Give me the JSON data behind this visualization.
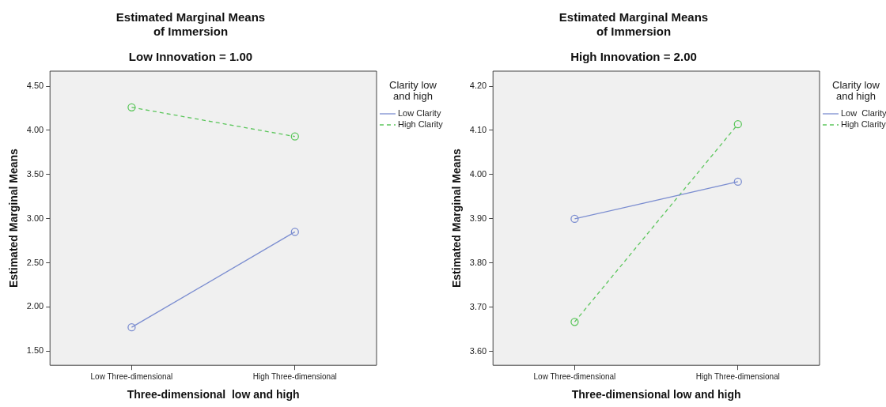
{
  "chart_data": [
    {
      "type": "line",
      "title": "Estimated Marginal Means of Immersion",
      "subtitle": "Low Innovation = 1.00",
      "xlabel": "Three-dimensional  low and high",
      "ylabel": "Estimated Marginal Means",
      "legend_title": "Clarity low and high",
      "categories": [
        "Low Three-dimensional",
        "High Three-dimensional"
      ],
      "series": [
        {
          "name": "Low Clarity",
          "color": "#7b8dd0",
          "values": [
            1.77,
            2.85
          ],
          "line_style": "solid"
        },
        {
          "name": "High Clarity",
          "color": "#5cc65c",
          "values": [
            4.26,
            3.93
          ],
          "line_style": "dashed"
        }
      ],
      "ylim": [
        1.34,
        4.67
      ],
      "yticks": [
        {
          "value": 1.5,
          "label": "1.50"
        },
        {
          "value": 2,
          "label": "2.00"
        },
        {
          "value": 2.5,
          "label": "2.50"
        },
        {
          "value": 3,
          "label": "3.00"
        },
        {
          "value": 3.5,
          "label": "3.50"
        },
        {
          "value": 4,
          "label": "4.00"
        },
        {
          "value": 4.5,
          "label": "4.50"
        }
      ],
      "grid": false,
      "legend": "top right",
      "marker": "circle"
    },
    {
      "type": "line",
      "title": "Estimated Marginal Means of Immersion",
      "subtitle": "High Innovation = 2.00",
      "xlabel": "Three-dimensional low and high",
      "ylabel": "Estimated Marginal Means",
      "legend_title": "Clarity low and high",
      "categories": [
        "Low Three-dimensional",
        "High Three-dimensional"
      ],
      "series": [
        {
          "name": "Low  Clarity",
          "color": "#7b8dd0",
          "values": [
            3.9,
            3.984
          ],
          "line_style": "solid"
        },
        {
          "name": "High Clarity",
          "color": "#5cc65c",
          "values": [
            3.667,
            4.114
          ],
          "line_style": "dashed"
        }
      ],
      "ylim": [
        3.569,
        4.234
      ],
      "yticks": [
        {
          "value": 3.6,
          "label": "3.60"
        },
        {
          "value": 3.7,
          "label": "3.70"
        },
        {
          "value": 3.8,
          "label": "3.80"
        },
        {
          "value": 3.9,
          "label": "3.90"
        },
        {
          "value": 4,
          "label": "4.00"
        },
        {
          "value": 4.1,
          "label": "4.10"
        },
        {
          "value": 4.2,
          "label": "4.20"
        }
      ],
      "grid": false,
      "legend": "top right",
      "marker": "circle"
    }
  ]
}
